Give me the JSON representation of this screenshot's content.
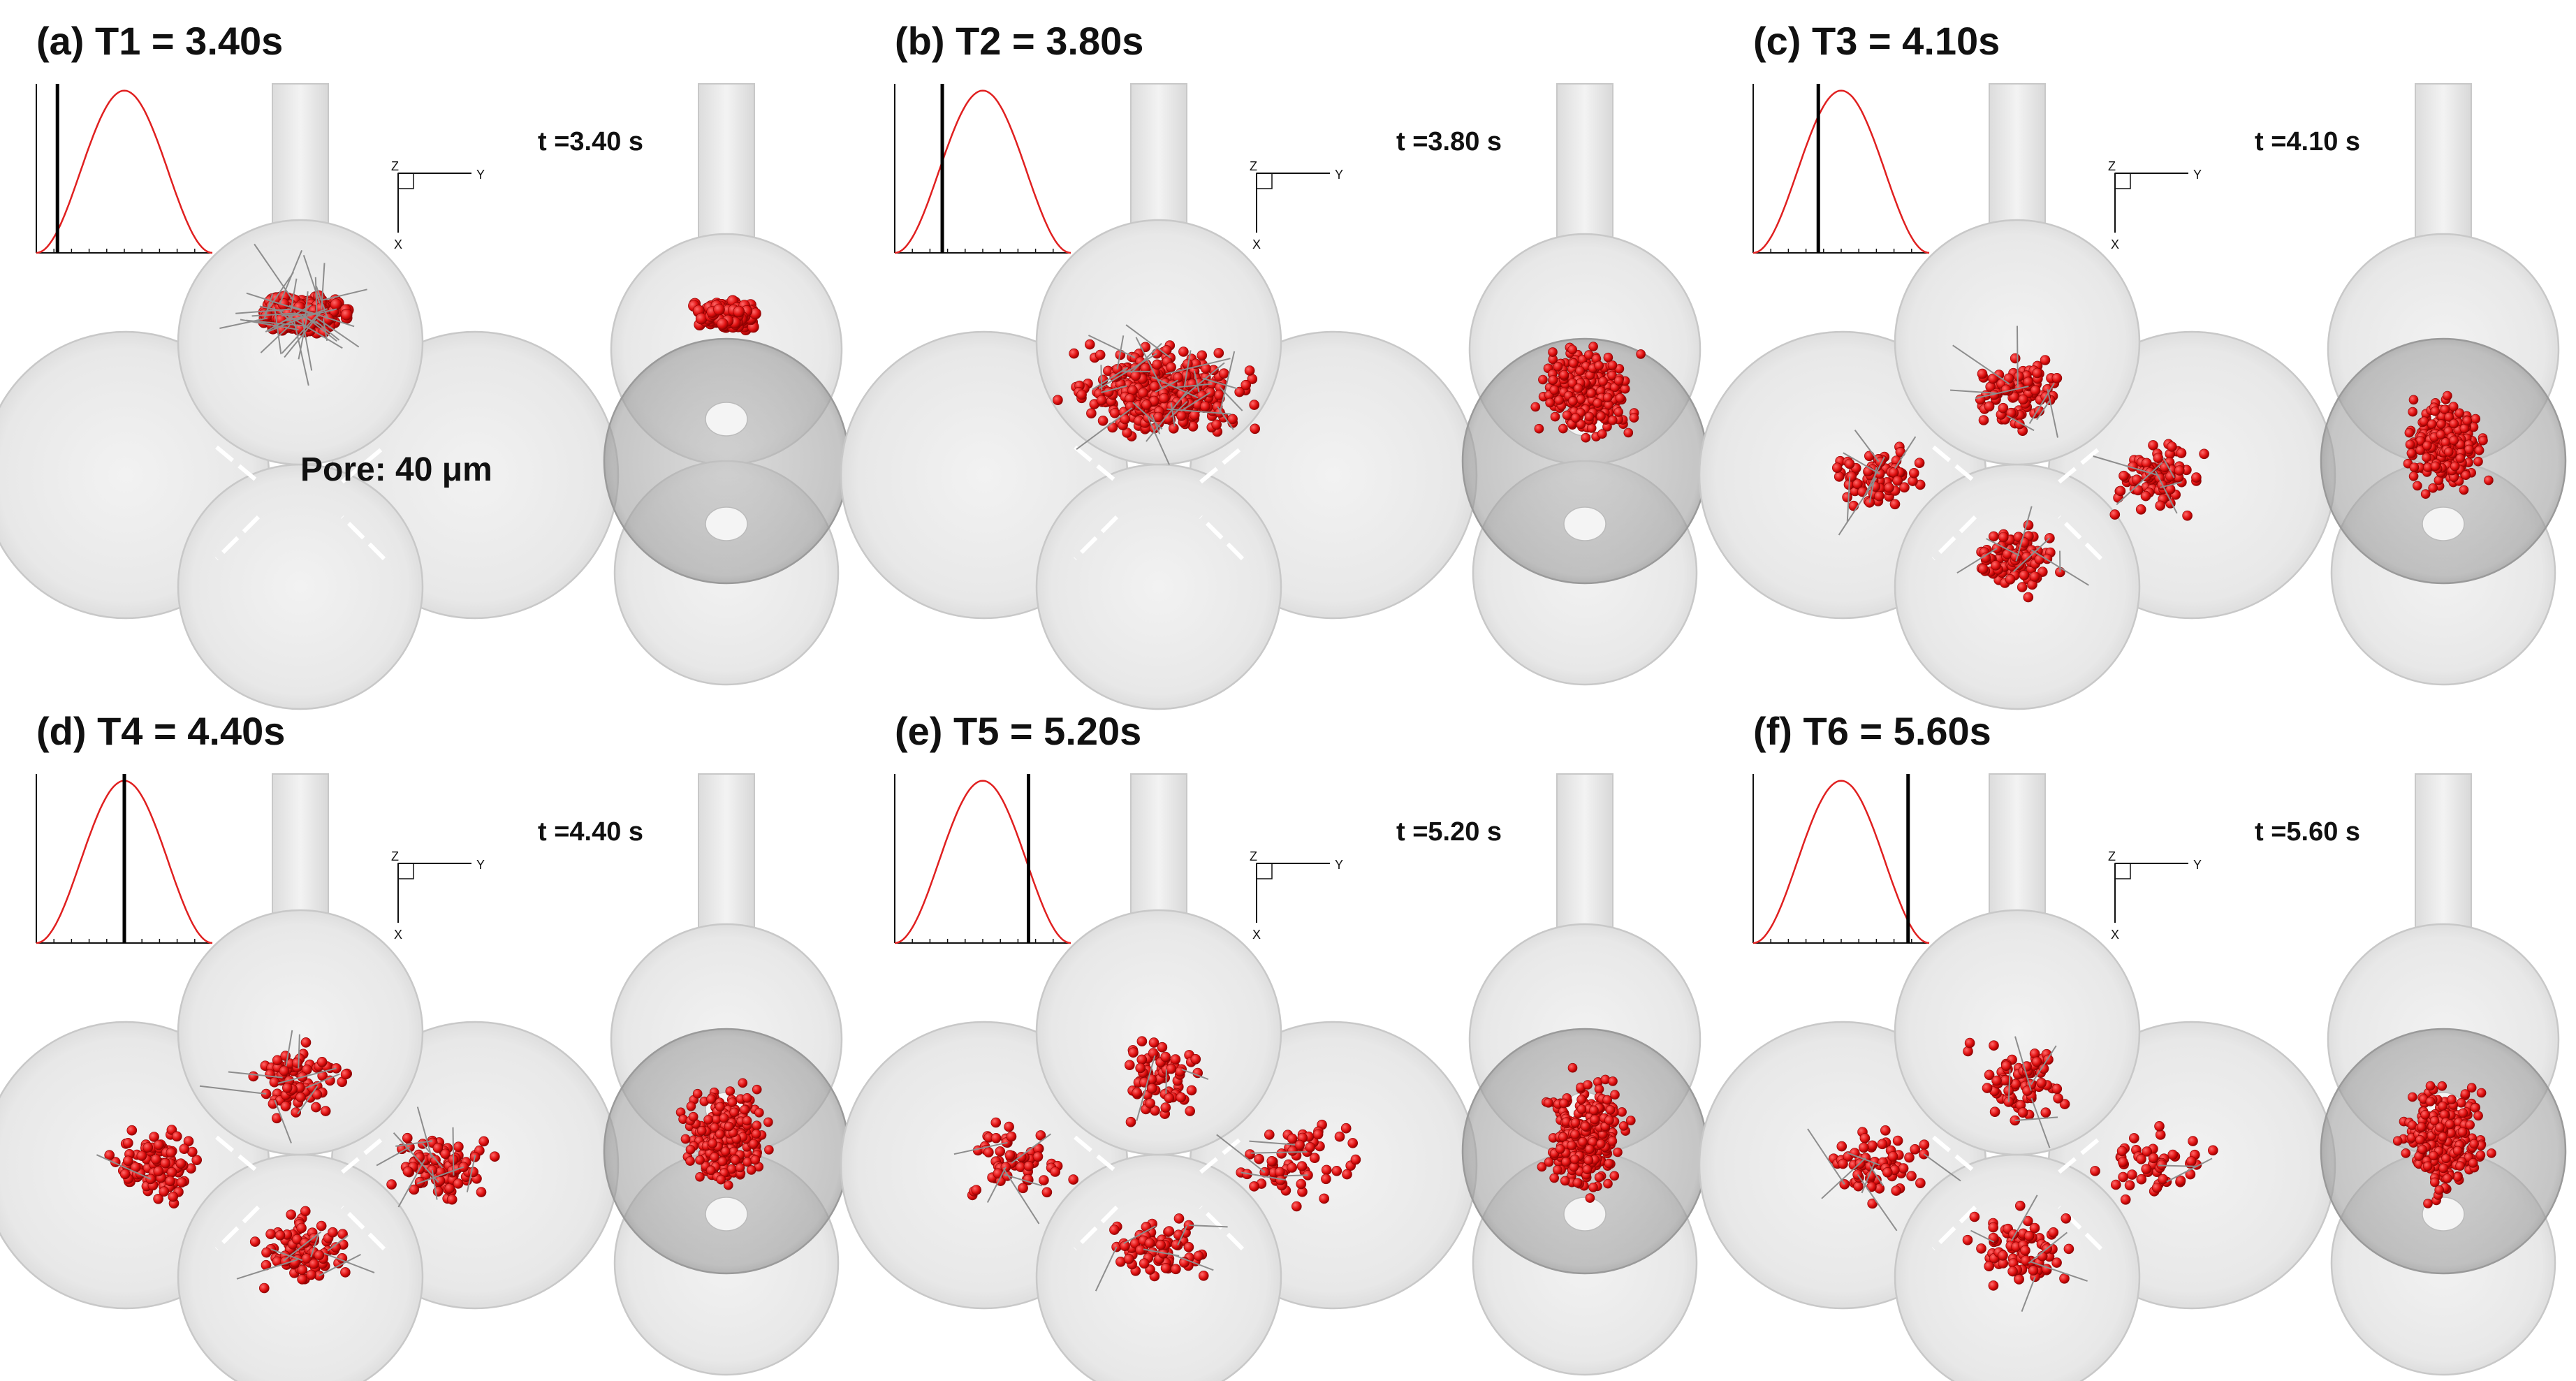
{
  "panels": [
    {
      "id": "a",
      "title": "(a) T1 = 3.40s",
      "time_label": "t =3.40 s",
      "marker_fraction": 0.12,
      "spread": 0.18,
      "center": "top"
    },
    {
      "id": "b",
      "title": "(b) T2 = 3.80s",
      "time_label": "t =3.80 s",
      "marker_fraction": 0.27,
      "spread": 0.5,
      "center": "top-mid"
    },
    {
      "id": "c",
      "title": "(c) T3 = 4.10s",
      "time_label": "t =4.10 s",
      "marker_fraction": 0.37,
      "spread": 0.75,
      "center": "mid"
    },
    {
      "id": "d",
      "title": "(d) T4 = 4.40s",
      "time_label": "t =4.40 s",
      "marker_fraction": 0.5,
      "spread": 0.85,
      "center": "mid"
    },
    {
      "id": "e",
      "title": "(e) T5 = 5.20s",
      "time_label": "t =5.20 s",
      "marker_fraction": 0.76,
      "spread": 0.95,
      "center": "mid"
    },
    {
      "id": "f",
      "title": "(f) T6 = 5.60s",
      "time_label": "t =5.60 s",
      "marker_fraction": 0.88,
      "spread": 0.95,
      "center": "mid"
    }
  ],
  "pore_label": "Pore: 40 μm",
  "axis_letters": {
    "z": "Z",
    "y": "Y",
    "x": "X"
  },
  "colors": {
    "particle": "#e01010",
    "particle_edge": "#8a0000",
    "pulse_curve": "#e02020",
    "marker": "#000000",
    "shell_fill": "#e6e6e6",
    "shell_stroke": "#c8c8c8",
    "shell_dark": "#9a9a9a"
  }
}
